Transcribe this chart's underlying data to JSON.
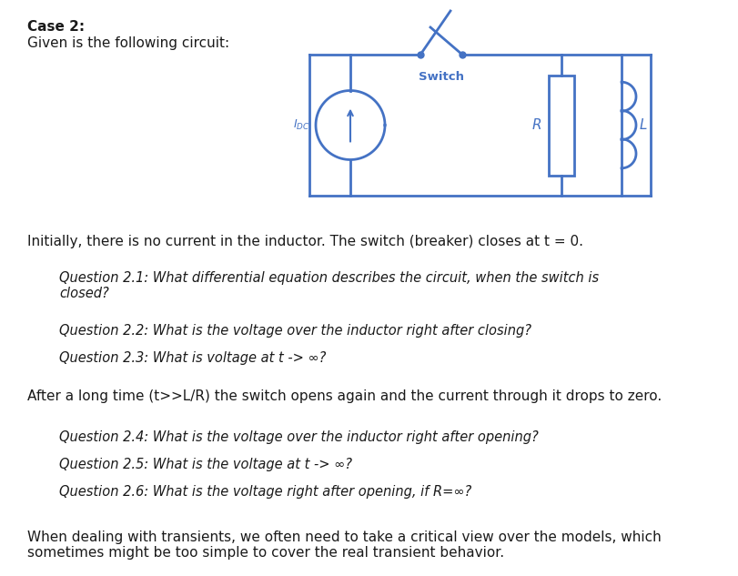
{
  "title": "Case 2:",
  "subtitle": "Given is the following circuit:",
  "bg_color": "#ffffff",
  "circuit_color": "#4472c4",
  "text_color": "#1a1a1a",
  "body_text_1": "Initially, there is no current in the inductor. The switch (breaker) closes at t = 0.",
  "q21": "Question 2.1: What differential equation describes the circuit, when the switch is\nclosed?",
  "q22": "Question 2.2: What is the voltage over the inductor right after closing?",
  "q23": "Question 2.3: What is voltage at t -> ∞?",
  "body_text_2": "After a long time (t>>L/R) the switch opens again and the current through it drops to zero.",
  "q24": "Question 2.4: What is the voltage over the inductor right after opening?",
  "q25": "Question 2.5: What is the voltage at t -> ∞?",
  "q26": "Question 2.6: What is the voltage right after opening, if R=∞?",
  "footer": "When dealing with transients, we often need to take a critical view over the models, which\nsometimes might be too simple to cover the real transient behavior."
}
